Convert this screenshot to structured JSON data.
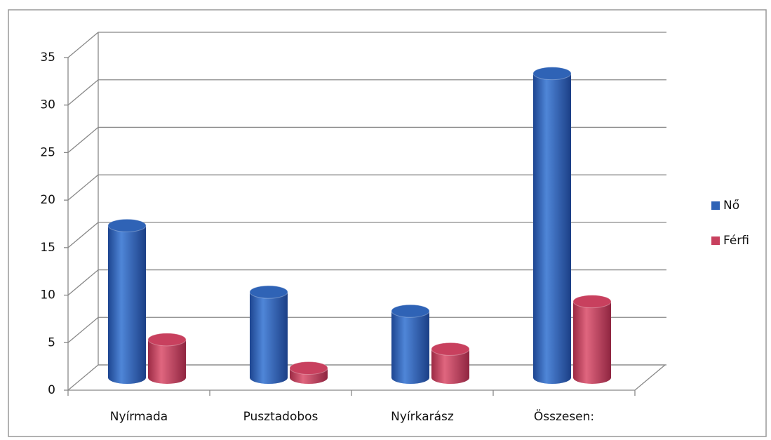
{
  "chart_data": {
    "type": "bar3d",
    "categories": [
      "Nyírmada",
      "Pusztadobos",
      "Nyírkarász",
      "Összesen:"
    ],
    "series": [
      {
        "name": "Nő",
        "color": "#2f63b6",
        "values": [
          16,
          9,
          7,
          32
        ]
      },
      {
        "name": "Férfi",
        "color": "#c8405e",
        "values": [
          4,
          1,
          3,
          8
        ]
      }
    ],
    "ylim": [
      0,
      35
    ],
    "yticks": [
      0,
      5,
      10,
      15,
      20,
      25,
      30,
      35
    ],
    "grid": true,
    "legend": "right"
  }
}
